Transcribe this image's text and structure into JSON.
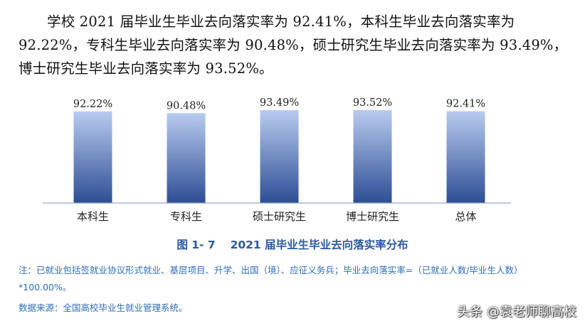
{
  "paragraph": "学校 2021 届毕业生毕业去向落实率为 92.41%，本科生毕业去向落实率为 92.22%，专科生毕业去向落实率为 90.48%，硕士研究生毕业去向落实率为 93.49%，博士研究生毕业去向落实率为 93.52%。",
  "chart_data": {
    "type": "bar",
    "categories": [
      "本科生",
      "专科生",
      "硕士研究生",
      "博士研究生",
      "总体"
    ],
    "values": [
      92.22,
      90.48,
      93.49,
      93.52,
      92.41
    ],
    "data_labels": [
      "92.22%",
      "90.48%",
      "93.49%",
      "93.52%",
      "92.41%"
    ],
    "grid": false,
    "bar_gradient": [
      "#b9cbef",
      "#2d4e94"
    ]
  },
  "caption": "图 1- 7　 2021 届毕业生毕业去向落实率分布",
  "note": "注：已就业包括签就业协议形式就业、基层项目、升学、出国（境）、应征义务兵；毕业去向落实率=（已就业人数/毕业生人数）*100.00%。",
  "source": "数据来源：全国高校毕业生就业管理系统。",
  "watermark": "头条 @袁老师聊高校"
}
